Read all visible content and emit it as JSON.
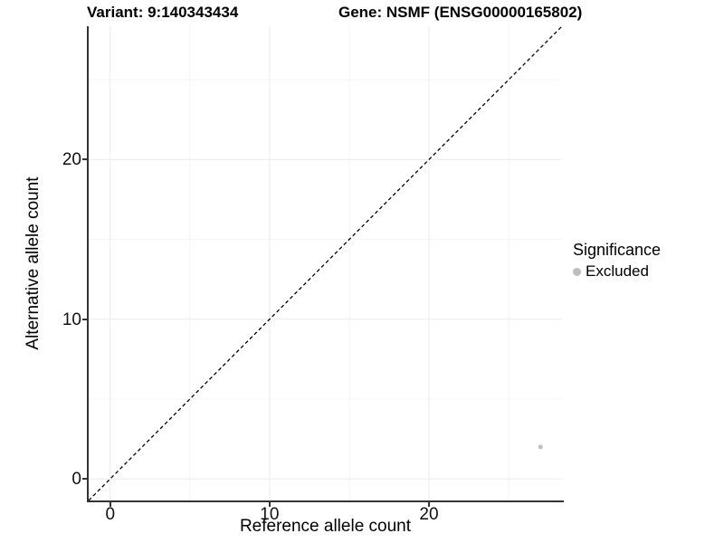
{
  "titles": {
    "variant": "Variant: 9:140343434",
    "gene": "Gene: NSMF (ENSG00000165802)"
  },
  "axes": {
    "x": {
      "label": "Reference allele count",
      "ticks": [
        "0",
        "10",
        "20"
      ]
    },
    "y": {
      "label": "Alternative allele count",
      "ticks": [
        "0",
        "10",
        "20"
      ]
    }
  },
  "legend": {
    "title": "Significance",
    "items": [
      {
        "label": "Excluded",
        "color": "#bebebe"
      }
    ]
  },
  "chart_data": {
    "type": "scatter",
    "title": "Variant: 9:140343434 — Gene: NSMF (ENSG00000165802)",
    "xlabel": "Reference allele count",
    "ylabel": "Alternative allele count",
    "xlim": [
      -1.35,
      28.35
    ],
    "ylim": [
      -1.35,
      28.35
    ],
    "x_ticks": [
      0,
      10,
      20
    ],
    "y_ticks": [
      0,
      10,
      20
    ],
    "x_minor_ticks": [
      5,
      15,
      25
    ],
    "y_minor_ticks": [
      5,
      15,
      25
    ],
    "grid": "major+minor",
    "legend_position": "right",
    "reference_line": {
      "type": "identity",
      "slope": 1,
      "intercept": 0,
      "style": "dashed",
      "color": "#000000"
    },
    "series": [
      {
        "name": "Excluded",
        "color": "#bebebe",
        "points": [
          {
            "x": 27,
            "y": 2
          }
        ]
      }
    ],
    "colors": {
      "grid_major": "#ebebeb",
      "grid_minor": "#f5f5f5",
      "axis_line": "#333333",
      "text": "#000000"
    }
  }
}
